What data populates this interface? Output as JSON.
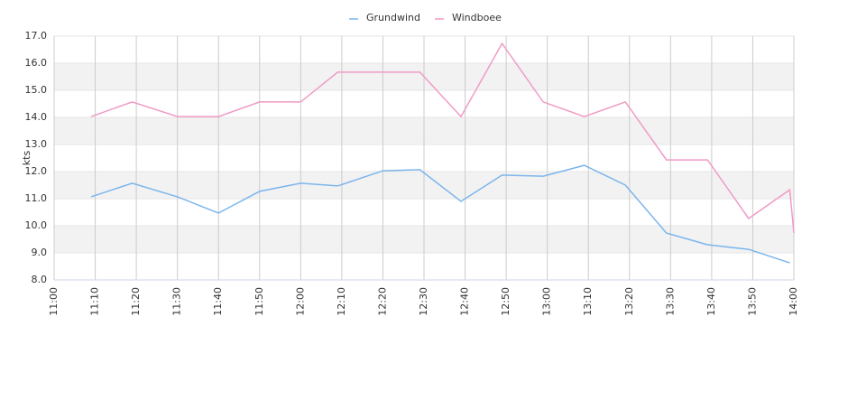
{
  "chart_data": {
    "type": "line",
    "y_label": "kts",
    "x": [
      "11:09",
      "11:19",
      "11:30",
      "11:40",
      "11:50",
      "12:00",
      "12:09",
      "12:20",
      "12:29",
      "12:39",
      "12:49",
      "12:59",
      "13:09",
      "13:19",
      "13:29",
      "13:39",
      "13:49",
      "13:59",
      "14:00"
    ],
    "xlim": [
      "11:00",
      "14:00"
    ],
    "xticks": [
      "11:00",
      "11:10",
      "11:20",
      "11:30",
      "11:40",
      "11:50",
      "12:00",
      "12:10",
      "12:20",
      "12:30",
      "12:40",
      "12:50",
      "13:00",
      "13:10",
      "13:20",
      "13:30",
      "13:40",
      "13:50",
      "14:00"
    ],
    "ylim": [
      8,
      17
    ],
    "yticks": [
      {
        "value": 8,
        "label": "8.0"
      },
      {
        "value": 9,
        "label": "9.0"
      },
      {
        "value": 10,
        "label": "10.0"
      },
      {
        "value": 11,
        "label": "11.0"
      },
      {
        "value": 12,
        "label": "12.0"
      },
      {
        "value": 13,
        "label": "13.0"
      },
      {
        "value": 14,
        "label": "14.0"
      },
      {
        "value": 15,
        "label": "15.0"
      },
      {
        "value": 16,
        "label": "16.0"
      },
      {
        "value": 17,
        "label": "17.0"
      }
    ],
    "grid": true,
    "legend": "top",
    "series": [
      {
        "name": "Grundwind",
        "color": "#7cb5ec",
        "values": [
          11.07,
          11.57,
          11.07,
          10.47,
          11.27,
          11.57,
          11.47,
          12.03,
          12.07,
          10.9,
          11.87,
          11.83,
          12.23,
          11.5,
          9.73,
          9.3,
          9.13,
          8.63,
          null
        ]
      },
      {
        "name": "Windboee",
        "color": "#f09bc6",
        "values": [
          14.03,
          14.57,
          14.03,
          14.03,
          14.57,
          14.57,
          15.67,
          15.67,
          15.67,
          14.03,
          16.73,
          14.57,
          14.03,
          14.57,
          12.43,
          12.43,
          10.27,
          11.33,
          9.73
        ]
      }
    ]
  }
}
